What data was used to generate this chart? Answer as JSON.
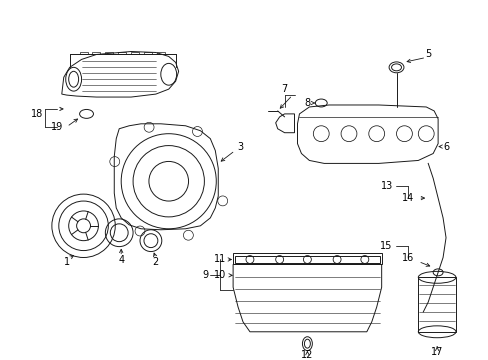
{
  "bg_color": "#ffffff",
  "line_color": "#1a1a1a",
  "label_color": "#000000",
  "figsize": [
    4.89,
    3.6
  ],
  "dpi": 100,
  "lw": 0.7,
  "fs": 7.0
}
